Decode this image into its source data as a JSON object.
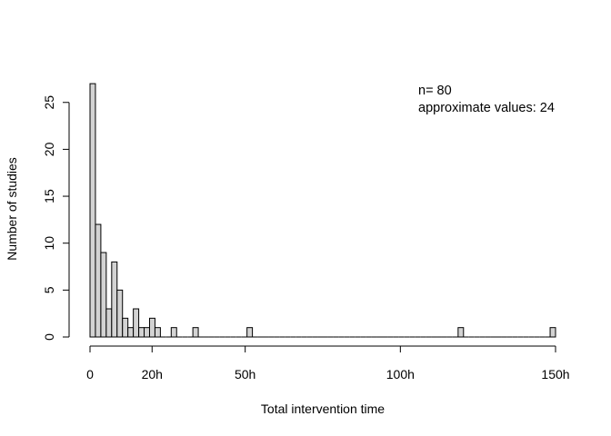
{
  "chart_data": {
    "type": "bar",
    "subtype": "histogram",
    "bin_width": 3.333,
    "xlim": [
      0,
      150
    ],
    "ylim": [
      0,
      27
    ],
    "x_ticks": [
      {
        "value": 0,
        "label": "0"
      },
      {
        "value": 20,
        "label": "20h"
      },
      {
        "value": 50,
        "label": "50h"
      },
      {
        "value": 100,
        "label": "100h"
      },
      {
        "value": 150,
        "label": "150h"
      }
    ],
    "y_ticks": [
      {
        "value": 0,
        "label": "0"
      },
      {
        "value": 5,
        "label": "5"
      },
      {
        "value": 10,
        "label": "10"
      },
      {
        "value": 15,
        "label": "15"
      },
      {
        "value": 20,
        "label": "20"
      },
      {
        "value": 25,
        "label": "25"
      }
    ],
    "xlabel": "Total intervention time",
    "ylabel": "Number of studies",
    "counts": [
      27,
      12,
      9,
      3,
      8,
      5,
      2,
      1,
      3,
      1,
      1,
      2,
      1,
      0,
      0,
      1,
      0,
      0,
      0,
      1,
      0,
      0,
      0,
      0,
      0,
      0,
      0,
      0,
      0,
      1,
      0,
      0,
      0,
      0,
      0,
      0,
      0,
      0,
      0,
      0,
      0,
      0,
      0,
      0,
      0,
      0,
      0,
      0,
      0,
      0,
      0,
      0,
      0,
      0,
      0,
      0,
      0,
      0,
      0,
      0,
      0,
      0,
      0,
      0,
      0,
      0,
      0,
      0,
      1,
      0,
      0,
      0,
      0,
      0,
      0,
      0,
      0,
      0,
      0,
      0,
      0,
      0,
      0,
      0,
      0,
      1
    ],
    "bar_fill": "#d3d3d3",
    "bar_stroke": "#000000",
    "annotations": {
      "n_line": "n= 80",
      "approx_line": "approximate values: 24"
    },
    "grid": false,
    "legend": "none"
  }
}
